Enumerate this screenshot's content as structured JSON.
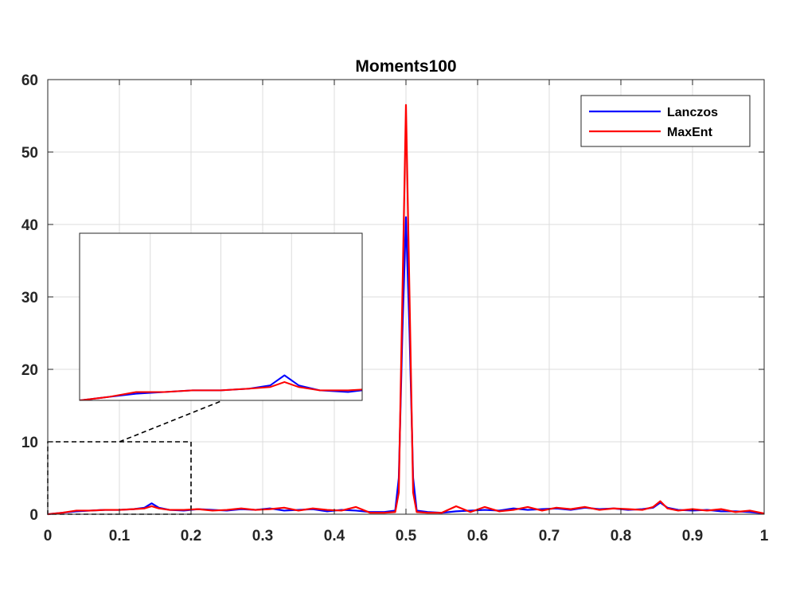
{
  "chart_data": {
    "type": "line",
    "title": "Moments100",
    "xlabel": "",
    "ylabel": "",
    "xlim": [
      0,
      1
    ],
    "ylim": [
      0,
      60
    ],
    "grid": true,
    "legend_position": "top-right",
    "x_ticks": [
      0,
      0.1,
      0.2,
      0.3,
      0.4,
      0.5,
      0.6,
      0.7,
      0.8,
      0.9,
      1
    ],
    "x_tick_labels": [
      "0",
      "0.1",
      "0.2",
      "0.3",
      "0.4",
      "0.5",
      "0.6",
      "0.7",
      "0.8",
      "0.9",
      "1"
    ],
    "y_ticks": [
      0,
      10,
      20,
      30,
      40,
      50,
      60
    ],
    "y_tick_labels": [
      "0",
      "10",
      "20",
      "30",
      "40",
      "50",
      "60"
    ],
    "series": [
      {
        "name": "Lanczos",
        "color": "#0000ff",
        "x": [
          0,
          0.02,
          0.04,
          0.06,
          0.08,
          0.1,
          0.12,
          0.135,
          0.145,
          0.155,
          0.17,
          0.19,
          0.21,
          0.23,
          0.25,
          0.27,
          0.29,
          0.31,
          0.33,
          0.35,
          0.37,
          0.39,
          0.41,
          0.43,
          0.45,
          0.47,
          0.485,
          0.49,
          0.495,
          0.5,
          0.505,
          0.51,
          0.515,
          0.53,
          0.55,
          0.57,
          0.59,
          0.61,
          0.63,
          0.65,
          0.67,
          0.69,
          0.71,
          0.73,
          0.75,
          0.77,
          0.79,
          0.81,
          0.83,
          0.845,
          0.855,
          0.865,
          0.88,
          0.9,
          0.92,
          0.94,
          0.96,
          0.98,
          1.0
        ],
        "y": [
          0,
          0.2,
          0.4,
          0.5,
          0.6,
          0.6,
          0.7,
          0.9,
          1.5,
          0.9,
          0.6,
          0.5,
          0.7,
          0.6,
          0.5,
          0.7,
          0.6,
          0.8,
          0.5,
          0.6,
          0.7,
          0.4,
          0.6,
          0.5,
          0.3,
          0.3,
          0.5,
          5,
          25,
          41,
          25,
          5,
          0.5,
          0.3,
          0.2,
          0.4,
          0.5,
          0.6,
          0.5,
          0.8,
          0.6,
          0.7,
          0.8,
          0.6,
          0.9,
          0.7,
          0.8,
          0.6,
          0.7,
          0.9,
          1.6,
          0.9,
          0.6,
          0.5,
          0.6,
          0.4,
          0.4,
          0.3,
          0.1
        ]
      },
      {
        "name": "MaxEnt",
        "color": "#ff0000",
        "x": [
          0,
          0.02,
          0.04,
          0.06,
          0.08,
          0.1,
          0.12,
          0.135,
          0.145,
          0.155,
          0.17,
          0.19,
          0.21,
          0.23,
          0.25,
          0.27,
          0.29,
          0.31,
          0.33,
          0.35,
          0.37,
          0.39,
          0.41,
          0.43,
          0.45,
          0.47,
          0.485,
          0.49,
          0.495,
          0.5,
          0.505,
          0.51,
          0.515,
          0.53,
          0.55,
          0.57,
          0.59,
          0.61,
          0.63,
          0.65,
          0.67,
          0.69,
          0.71,
          0.73,
          0.75,
          0.77,
          0.79,
          0.81,
          0.83,
          0.845,
          0.855,
          0.865,
          0.88,
          0.9,
          0.92,
          0.94,
          0.96,
          0.98,
          1.0
        ],
        "y": [
          0,
          0.2,
          0.5,
          0.5,
          0.6,
          0.6,
          0.7,
          0.8,
          1.1,
          0.8,
          0.6,
          0.6,
          0.7,
          0.5,
          0.6,
          0.8,
          0.6,
          0.7,
          0.9,
          0.5,
          0.8,
          0.6,
          0.5,
          1.0,
          0.2,
          0.2,
          0.3,
          3,
          30,
          56.5,
          30,
          3,
          0.3,
          0.2,
          0.2,
          1.1,
          0.3,
          1.0,
          0.4,
          0.6,
          1.0,
          0.5,
          0.9,
          0.7,
          1.0,
          0.6,
          0.8,
          0.7,
          0.6,
          1.0,
          1.8,
          0.8,
          0.5,
          0.7,
          0.5,
          0.7,
          0.3,
          0.5,
          0.1
        ]
      }
    ],
    "inset": {
      "description_source": "zoom of region x 0-0.2, y 0-10",
      "xlim": [
        0,
        0.2
      ],
      "ylim": [
        0,
        10
      ],
      "zoom_box": {
        "x": [
          0,
          0.2
        ],
        "y": [
          0,
          10
        ]
      }
    }
  }
}
